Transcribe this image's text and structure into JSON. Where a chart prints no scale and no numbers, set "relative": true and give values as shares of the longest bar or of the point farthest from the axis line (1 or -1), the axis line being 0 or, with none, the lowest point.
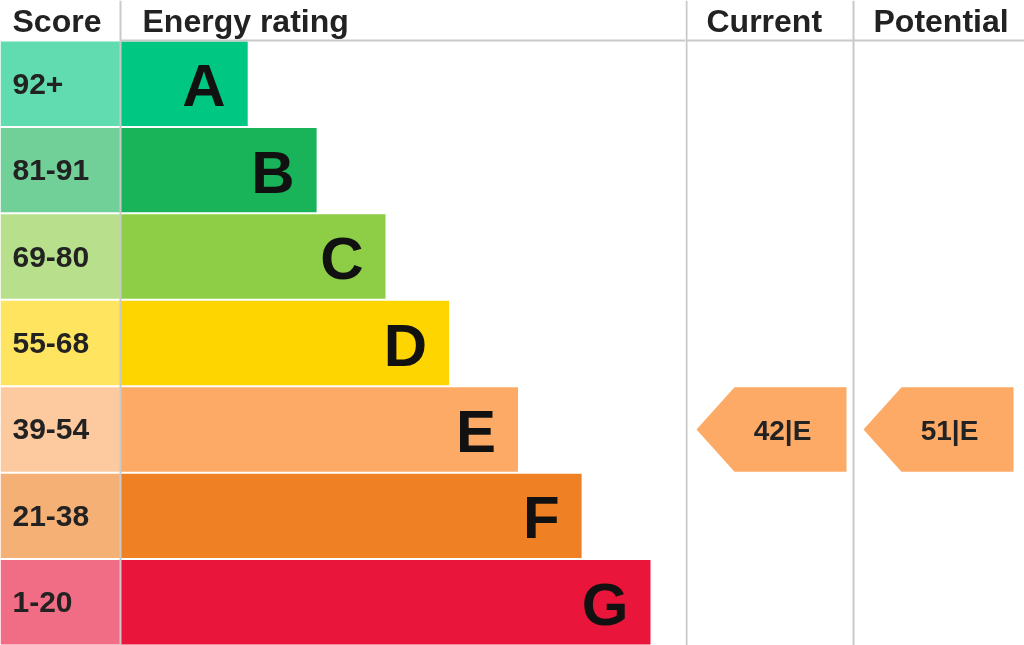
{
  "chart_data": [
    {
      "type": "bar",
      "orientation": "horizontal",
      "relative": true,
      "xlabel": "Energy rating",
      "ylabel": "Score",
      "categories": [
        "92+",
        "81-91",
        "69-80",
        "55-68",
        "39-54",
        "21-38",
        "1-20"
      ],
      "values": [
        0.24,
        0.37,
        0.5,
        0.62,
        0.75,
        0.87,
        1
      ],
      "colors": [
        "#00c781",
        "#19b459",
        "#8dce46",
        "#ffd500",
        "#fcaa65",
        "#ef8023",
        "#e9153b"
      ],
      "annotations": [
        {
          "text": "A",
          "x": 0.24,
          "y": "92+"
        },
        {
          "text": "B",
          "x": 0.37,
          "y": "81-91"
        },
        {
          "text": "C",
          "x": 0.5,
          "y": "69-80"
        },
        {
          "text": "D",
          "x": 0.62,
          "y": "55-68"
        },
        {
          "text": "E",
          "x": 0.75,
          "y": "39-54"
        },
        {
          "text": "F",
          "x": 0.87,
          "y": "21-38"
        },
        {
          "text": "G",
          "x": 1,
          "y": "1-20"
        }
      ]
    },
    {
      "type": "heatmap",
      "tick_labels": "x",
      "categories": [
        "Current",
        "Potential"
      ],
      "y_categories": [
        "92+",
        "81-91",
        "69-80",
        "55-68",
        "39-54",
        "21-38",
        "1-20"
      ],
      "cells": [
        [
          null,
          null
        ],
        [
          null,
          null
        ],
        [
          null,
          null
        ],
        [
          null,
          null
        ],
        [
          42,
          51
        ],
        [
          null,
          null
        ],
        [
          null,
          null
        ]
      ],
      "cell_labels": [
        [
          null,
          null
        ],
        [
          null,
          null
        ],
        [
          null,
          null
        ],
        [
          null,
          null
        ],
        [
          "42|E",
          "51|E"
        ],
        [
          null,
          null
        ],
        [
          null,
          null
        ]
      ]
    }
  ]
}
